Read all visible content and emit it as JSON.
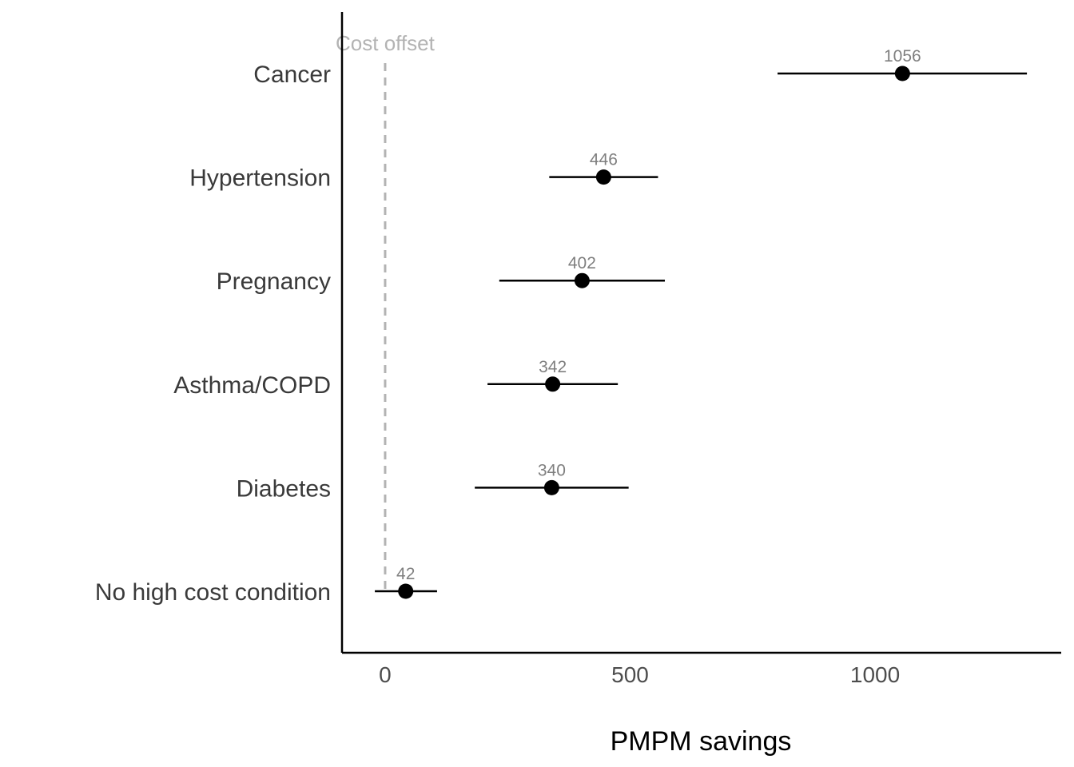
{
  "chart_data": {
    "type": "scatter",
    "subtype": "point-range",
    "title": "",
    "xlabel": "PMPM savings",
    "ylabel": "",
    "xlim": [
      -88,
      1380
    ],
    "x_ticks": [
      0,
      500,
      1000
    ],
    "x_tick_labels": [
      "0",
      "500",
      "1000"
    ],
    "grid": false,
    "reference_line": {
      "x": 0,
      "label": "Cost offset",
      "style": "dashed",
      "color": "#b3b3b3"
    },
    "categories": [
      "Cancer",
      "Hypertension",
      "Pregnancy",
      "Asthma/COPD",
      "Diabetes",
      "No high cost condition"
    ],
    "points": [
      {
        "category": "Cancer",
        "value": 1056,
        "label": "1056",
        "low": 801,
        "high": 1310
      },
      {
        "category": "Hypertension",
        "value": 446,
        "label": "446",
        "low": 335,
        "high": 557
      },
      {
        "category": "Pregnancy",
        "value": 402,
        "label": "402",
        "low": 233,
        "high": 571
      },
      {
        "category": "Asthma/COPD",
        "value": 342,
        "label": "342",
        "low": 209,
        "high": 475
      },
      {
        "category": "Diabetes",
        "value": 340,
        "label": "340",
        "low": 183,
        "high": 497
      },
      {
        "category": "No high cost condition",
        "value": 42,
        "label": "42",
        "low": -21,
        "high": 106
      }
    ],
    "colors": {
      "point": "#000000",
      "interval": "#000000",
      "data_label": "#7f7f7f",
      "axis": "#000000",
      "reference": "#b3b3b3"
    }
  }
}
